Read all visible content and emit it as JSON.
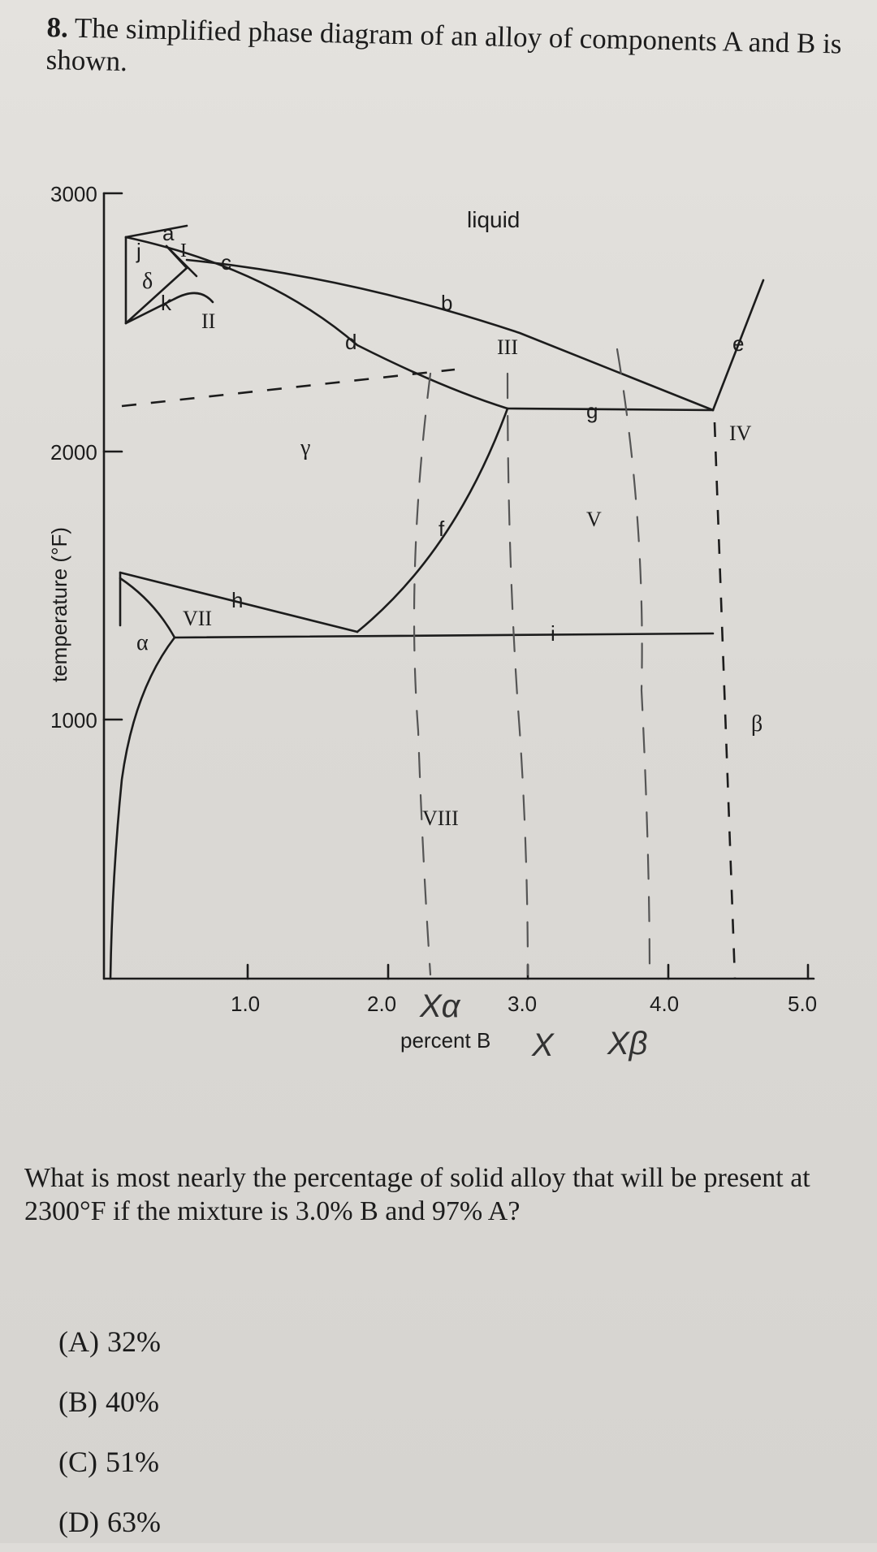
{
  "question": {
    "number": "8.",
    "intro": "The simplified phase diagram of an alloy of components A and B is shown.",
    "prompt": "What is most nearly the percentage of solid alloy that will be present at 2300°F if the mixture is 3.0% B and 97% A?",
    "choices": [
      {
        "letter": "(A)",
        "text": "32%"
      },
      {
        "letter": "(B)",
        "text": "40%"
      },
      {
        "letter": "(C)",
        "text": "51%"
      },
      {
        "letter": "(D)",
        "text": "63%"
      }
    ]
  },
  "diagram": {
    "ylabel": "temperature (°F)",
    "xlabel": "percent B",
    "y_ticks": [
      {
        "value": 3000,
        "label": "3000"
      },
      {
        "value": 2000,
        "label": "2000"
      },
      {
        "value": 1000,
        "label": "1000"
      }
    ],
    "x_ticks": [
      {
        "value": 1.0,
        "label": "1.0"
      },
      {
        "value": 2.0,
        "label": "2.0"
      },
      {
        "value": 3.0,
        "label": "3.0"
      },
      {
        "value": 4.0,
        "label": "4.0"
      },
      {
        "value": 5.0,
        "label": "5.0"
      }
    ],
    "region_labels": {
      "liquid": "liquid",
      "delta": "δ",
      "gamma": "γ",
      "alpha": "α",
      "beta": "β",
      "I": "I",
      "II": "II",
      "III": "III",
      "IV": "IV",
      "V": "V",
      "VII": "VII",
      "VIII": "VIII"
    },
    "point_labels": {
      "a": "a",
      "b": "b",
      "c": "c",
      "d": "d",
      "e": "e",
      "f": "f",
      "g": "g",
      "h": "h",
      "i": "i",
      "j": "j",
      "k": "k"
    },
    "handwritten": {
      "x_alpha": "Xα",
      "x": "X",
      "x_beta": "Xβ"
    }
  }
}
